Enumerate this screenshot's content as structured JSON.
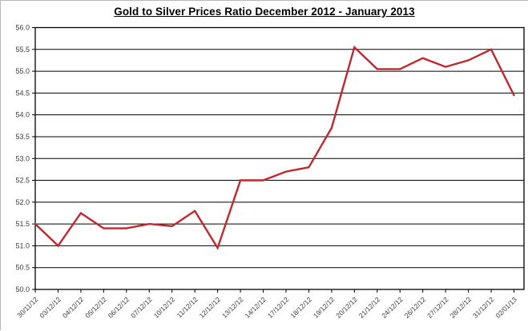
{
  "page": {
    "background_color": "#ffffff"
  },
  "chart_data": {
    "type": "line",
    "title": "Gold to Silver Prices Ratio December 2012 - January 2013",
    "categories": [
      "30/11/12",
      "03/12/12",
      "04/12/12",
      "05/12/12",
      "06/12/12",
      "07/12/12",
      "10/12/12",
      "11/12/12",
      "12/12/12",
      "13/12/12",
      "14/12/12",
      "17/12/12",
      "18/12/12",
      "19/12/12",
      "20/12/12",
      "21/12/12",
      "24/12/12",
      "26/12/12",
      "27/12/12",
      "28/12/12",
      "31/12/12",
      "02/01/13"
    ],
    "values": [
      51.5,
      51.0,
      51.75,
      51.4,
      51.4,
      51.5,
      51.45,
      51.8,
      50.95,
      52.5,
      52.5,
      52.7,
      52.8,
      53.7,
      55.55,
      55.05,
      55.05,
      55.3,
      55.1,
      55.25,
      55.5,
      54.45
    ],
    "ylim": [
      50.0,
      56.0
    ],
    "ytick_step": 0.5,
    "y_tick_labels": [
      "56.0",
      "55.5",
      "55.0",
      "54.5",
      "54.0",
      "53.5",
      "53.0",
      "52.5",
      "52.0",
      "51.5",
      "51.0",
      "50.5",
      "50.0"
    ],
    "xlabel": "",
    "ylabel": "",
    "grid": "horizontal",
    "legend": "none",
    "line_color": "#C1272D",
    "axis_color": "#000000",
    "tick_label_color": "#3d3d3d"
  }
}
